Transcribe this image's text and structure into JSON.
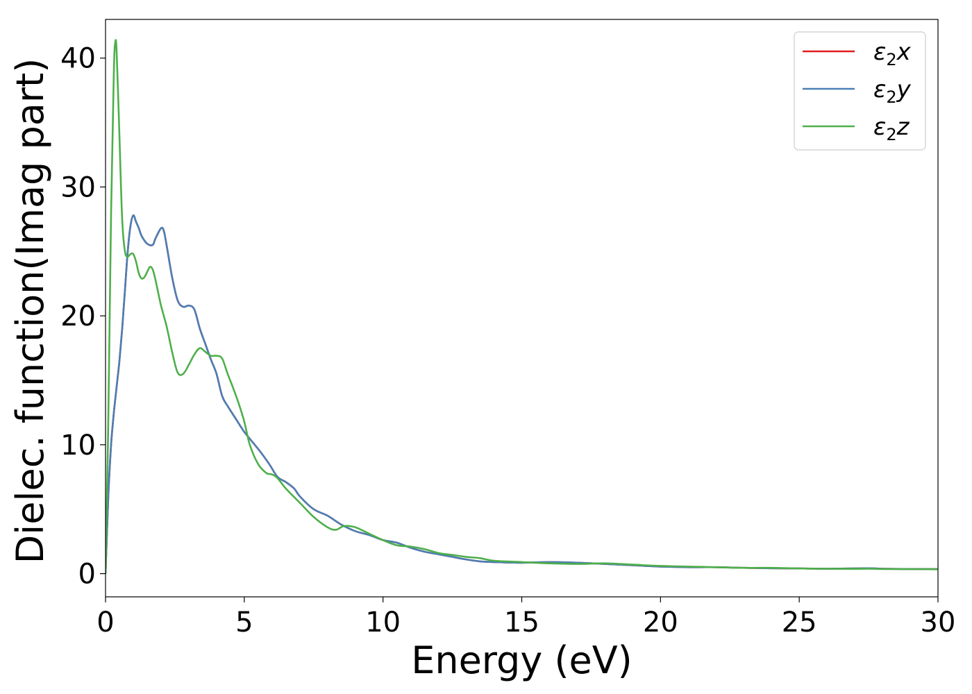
{
  "chart_data": {
    "type": "line",
    "xlabel": "Energy (eV)",
    "ylabel": "Dielec. function(Imag part)",
    "xlim": [
      0,
      30
    ],
    "ylim": [
      -1.8,
      43
    ],
    "xticks": [
      0,
      5,
      10,
      15,
      20,
      25,
      30
    ],
    "xtick_labels": [
      "0",
      "5",
      "10",
      "15",
      "20",
      "25",
      "30"
    ],
    "yticks": [
      0,
      10,
      20,
      30,
      40
    ],
    "ytick_labels": [
      "0",
      "10",
      "20",
      "30",
      "40"
    ],
    "grid": false,
    "legend_position": "top-right",
    "series": [
      {
        "name": "ε₂x",
        "label_base": "ε",
        "label_sub": "2",
        "label_var": "x",
        "color": "#e41a1c",
        "x": [
          0,
          0.1,
          0.2,
          0.3,
          0.4,
          0.5,
          0.6,
          0.7,
          0.8,
          0.9,
          1.0,
          1.1,
          1.2,
          1.3,
          1.5,
          1.7,
          1.8,
          2.0,
          2.1,
          2.2,
          2.4,
          2.6,
          2.8,
          3.0,
          3.2,
          3.4,
          3.6,
          3.8,
          4.0,
          4.2,
          4.4,
          4.7,
          5.0,
          5.3,
          5.6,
          5.9,
          6.2,
          6.5,
          6.8,
          7.0,
          7.5,
          8.0,
          8.5,
          9.0,
          9.5,
          10.0,
          10.5,
          11.0,
          11.5,
          12.0,
          12.5,
          13.0,
          13.5,
          14.0,
          15.0,
          16.0,
          17.0,
          18.0,
          19.0,
          20.0,
          21.0,
          22.0,
          23.0,
          24.0,
          25.0,
          26.0,
          27.0,
          27.5,
          28.0,
          29.0,
          30.0
        ],
        "values": [
          0,
          6,
          10,
          12.5,
          14.5,
          16.5,
          19,
          22,
          25,
          27,
          27.8,
          27.3,
          26.8,
          26.2,
          25.6,
          25.5,
          26.0,
          26.8,
          26.6,
          25.5,
          23.0,
          21.2,
          20.7,
          20.8,
          20.5,
          19.0,
          17.8,
          16.6,
          15.5,
          13.8,
          13.0,
          12.0,
          11.0,
          10.2,
          9.4,
          8.5,
          7.5,
          7.1,
          6.6,
          6.0,
          5.0,
          4.5,
          3.8,
          3.3,
          3.0,
          2.6,
          2.4,
          2.0,
          1.7,
          1.5,
          1.3,
          1.1,
          0.95,
          0.9,
          0.85,
          0.9,
          0.85,
          0.75,
          0.65,
          0.55,
          0.5,
          0.5,
          0.45,
          0.42,
          0.4,
          0.38,
          0.4,
          0.42,
          0.38,
          0.36,
          0.35
        ]
      },
      {
        "name": "ε₂y",
        "label_base": "ε",
        "label_sub": "2",
        "label_var": "y",
        "color": "#4a7fb5",
        "x": [
          0,
          0.1,
          0.2,
          0.3,
          0.4,
          0.5,
          0.6,
          0.7,
          0.8,
          0.9,
          1.0,
          1.1,
          1.2,
          1.3,
          1.5,
          1.7,
          1.8,
          2.0,
          2.1,
          2.2,
          2.4,
          2.6,
          2.8,
          3.0,
          3.2,
          3.4,
          3.6,
          3.8,
          4.0,
          4.2,
          4.4,
          4.7,
          5.0,
          5.3,
          5.6,
          5.9,
          6.2,
          6.5,
          6.8,
          7.0,
          7.5,
          8.0,
          8.5,
          9.0,
          9.5,
          10.0,
          10.5,
          11.0,
          11.5,
          12.0,
          12.5,
          13.0,
          13.5,
          14.0,
          15.0,
          16.0,
          17.0,
          18.0,
          19.0,
          20.0,
          21.0,
          22.0,
          23.0,
          24.0,
          25.0,
          26.0,
          27.0,
          27.5,
          28.0,
          29.0,
          30.0
        ],
        "values": [
          0,
          6,
          10,
          12.5,
          14.5,
          16.5,
          19,
          22,
          25,
          27,
          27.8,
          27.3,
          26.8,
          26.2,
          25.6,
          25.5,
          26.0,
          26.8,
          26.6,
          25.5,
          23.0,
          21.2,
          20.7,
          20.8,
          20.5,
          19.0,
          17.8,
          16.6,
          15.5,
          13.8,
          13.0,
          12.0,
          11.0,
          10.2,
          9.4,
          8.5,
          7.5,
          7.1,
          6.6,
          6.0,
          5.0,
          4.5,
          3.8,
          3.3,
          3.0,
          2.6,
          2.4,
          2.0,
          1.7,
          1.5,
          1.3,
          1.1,
          0.95,
          0.9,
          0.85,
          0.9,
          0.85,
          0.75,
          0.65,
          0.55,
          0.5,
          0.5,
          0.45,
          0.42,
          0.4,
          0.38,
          0.4,
          0.42,
          0.38,
          0.36,
          0.35
        ]
      },
      {
        "name": "ε₂z",
        "label_base": "ε",
        "label_sub": "2",
        "label_var": "z",
        "color": "#4daf4a",
        "x": [
          0,
          0.1,
          0.2,
          0.3,
          0.35,
          0.4,
          0.5,
          0.6,
          0.7,
          0.8,
          0.9,
          1.0,
          1.1,
          1.2,
          1.3,
          1.4,
          1.5,
          1.6,
          1.7,
          1.8,
          2.0,
          2.2,
          2.4,
          2.6,
          2.8,
          3.0,
          3.2,
          3.4,
          3.6,
          3.8,
          4.0,
          4.2,
          4.4,
          4.6,
          4.8,
          5.0,
          5.2,
          5.5,
          5.8,
          6.0,
          6.2,
          6.5,
          7.0,
          7.5,
          8.0,
          8.3,
          8.6,
          9.0,
          9.5,
          10.0,
          10.5,
          11.0,
          11.5,
          12.0,
          12.5,
          13.0,
          13.5,
          14.0,
          15.0,
          16.0,
          17.0,
          18.0,
          19.0,
          20.0,
          21.0,
          22.0,
          23.0,
          24.0,
          25.0,
          26.0,
          27.0,
          27.5,
          28.0,
          29.0,
          30.0
        ],
        "values": [
          0,
          12,
          28,
          39,
          41.2,
          40.5,
          34,
          27.5,
          25.0,
          24.6,
          24.8,
          24.8,
          24.2,
          23.3,
          22.9,
          23.0,
          23.4,
          23.8,
          23.6,
          22.8,
          20.8,
          19.2,
          17.2,
          15.6,
          15.5,
          16.2,
          17.0,
          17.5,
          17.2,
          16.9,
          16.9,
          16.7,
          15.5,
          14.4,
          13.2,
          11.8,
          10.0,
          8.5,
          7.8,
          7.7,
          7.4,
          6.6,
          5.5,
          4.4,
          3.6,
          3.4,
          3.7,
          3.6,
          3.1,
          2.6,
          2.2,
          2.1,
          1.9,
          1.6,
          1.45,
          1.3,
          1.2,
          1.0,
          0.9,
          0.8,
          0.75,
          0.8,
          0.7,
          0.6,
          0.55,
          0.5,
          0.45,
          0.45,
          0.4,
          0.38,
          0.37,
          0.38,
          0.36,
          0.35,
          0.34
        ]
      }
    ]
  }
}
